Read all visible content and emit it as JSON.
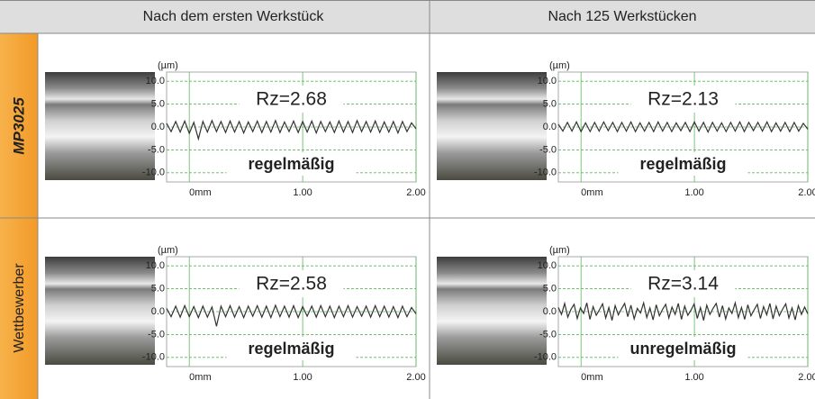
{
  "header": [
    "Nach dem ersten Werkstück",
    "Nach 125 Werkstücken"
  ],
  "rows": [
    {
      "label": "MP3025",
      "cells": [
        {
          "type": "line",
          "unit": "(µm)",
          "rz": "Rz=2.68",
          "rating": "regelmäßig",
          "ylim": [
            -12,
            12
          ],
          "yticks": [
            {
              "value": 10,
              "label": "10.0"
            },
            {
              "value": 5,
              "label": "5.0"
            },
            {
              "value": 0,
              "label": "0.0"
            },
            {
              "value": -5,
              "label": "-5.0"
            },
            {
              "value": -10,
              "label": "-10.0"
            }
          ],
          "xlim": [
            -0.2,
            2.0
          ],
          "xticks": [
            {
              "value": 0,
              "label": "0mm"
            },
            {
              "value": 1,
              "label": "1.00"
            },
            {
              "value": 2,
              "label": "2.00"
            }
          ],
          "profile": [
            0.8,
            -1.0,
            1.2,
            -1.1,
            1.3,
            -1.4,
            1.0,
            -2.6,
            1.2,
            -1.1,
            1.4,
            -1.0,
            1.2,
            -1.2,
            1.3,
            -1.1,
            1.2,
            -1.3,
            1.1,
            -1.0,
            1.3,
            -1.2,
            1.2,
            -1.1,
            1.4,
            -1.2,
            1.1,
            -1.0,
            1.3,
            -1.2,
            1.2,
            -1.1,
            1.3,
            -1.3,
            1.2,
            -1.0,
            1.1,
            -1.2,
            1.3,
            -1.1,
            1.2,
            -1.2,
            1.4,
            -1.0,
            1.2,
            -1.1,
            1.3,
            -1.2,
            1.1,
            -1.1,
            1.2,
            -1.3,
            1.2,
            -1.0,
            0.9,
            -0.4
          ]
        },
        {
          "type": "line",
          "unit": "(µm)",
          "rz": "Rz=2.13",
          "rating": "regelmäßig",
          "ylim": [
            -12,
            12
          ],
          "yticks": [
            {
              "value": 10,
              "label": "10.0"
            },
            {
              "value": 5,
              "label": "5.0"
            },
            {
              "value": 0,
              "label": "0.0"
            },
            {
              "value": -5,
              "label": "-5.0"
            },
            {
              "value": -10,
              "label": "-10.0"
            }
          ],
          "xlim": [
            -0.2,
            2.0
          ],
          "xticks": [
            {
              "value": 0,
              "label": "0mm"
            },
            {
              "value": 1,
              "label": "1.00"
            },
            {
              "value": 2,
              "label": "2.00"
            }
          ],
          "profile": [
            0.6,
            -0.9,
            1.0,
            -0.9,
            1.1,
            -1.0,
            0.9,
            -1.0,
            1.0,
            -0.9,
            1.1,
            -0.8,
            1.0,
            -1.0,
            1.0,
            -0.9,
            1.1,
            -1.0,
            0.9,
            -0.9,
            1.0,
            -1.0,
            1.1,
            -0.9,
            1.0,
            -1.0,
            0.9,
            -0.8,
            1.0,
            -1.0,
            1.1,
            -0.9,
            1.0,
            -1.1,
            1.0,
            -0.9,
            0.9,
            -1.0,
            1.0,
            -0.9,
            1.1,
            -1.0,
            1.0,
            -0.8,
            1.0,
            -0.9,
            1.1,
            -1.0,
            0.9,
            -0.9,
            1.0,
            -1.0,
            1.0,
            -0.9,
            0.8,
            -0.5
          ]
        }
      ]
    },
    {
      "label": "Wettbewerber",
      "cells": [
        {
          "type": "line",
          "unit": "(µm)",
          "rz": "Rz=2.58",
          "rating": "regelmäßig",
          "ylim": [
            -12,
            12
          ],
          "yticks": [
            {
              "value": 10,
              "label": "10.0"
            },
            {
              "value": 5,
              "label": "5.0"
            },
            {
              "value": 0,
              "label": "0.0"
            },
            {
              "value": -5,
              "label": "-5.0"
            },
            {
              "value": -10,
              "label": "-10.0"
            }
          ],
          "xlim": [
            -0.2,
            2.0
          ],
          "xticks": [
            {
              "value": 0,
              "label": "0mm"
            },
            {
              "value": 1,
              "label": "1.00"
            },
            {
              "value": 2,
              "label": "2.00"
            }
          ],
          "profile": [
            0.7,
            -1.1,
            1.2,
            -1.2,
            1.3,
            -1.1,
            1.1,
            -1.3,
            1.2,
            -1.2,
            1.0,
            -3.2,
            1.2,
            -1.1,
            1.3,
            -1.2,
            1.1,
            -1.3,
            1.2,
            -1.0,
            1.3,
            -1.2,
            1.2,
            -1.3,
            1.4,
            -1.1,
            1.2,
            -1.2,
            1.3,
            -1.3,
            1.1,
            -1.0,
            1.2,
            -1.2,
            1.3,
            -1.1,
            1.2,
            -1.3,
            1.2,
            -1.1,
            1.3,
            -1.2,
            1.1,
            -1.0,
            1.2,
            -1.2,
            1.3,
            -1.1,
            1.2,
            -1.2,
            1.1,
            -1.3,
            1.2,
            -1.1,
            0.9,
            -0.5
          ]
        },
        {
          "type": "line",
          "unit": "(µm)",
          "rz": "Rz=3.14",
          "rating": "unregelmäßig",
          "ylim": [
            -12,
            12
          ],
          "yticks": [
            {
              "value": 10,
              "label": "10.0"
            },
            {
              "value": 5,
              "label": "5.0"
            },
            {
              "value": 0,
              "label": "0.0"
            },
            {
              "value": -5,
              "label": "-5.0"
            },
            {
              "value": -10,
              "label": "-10.0"
            }
          ],
          "xlim": [
            -0.2,
            2.0
          ],
          "xticks": [
            {
              "value": 0,
              "label": "0mm"
            },
            {
              "value": 1,
              "label": "1.00"
            },
            {
              "value": 2,
              "label": "2.00"
            }
          ],
          "profile": [
            0.9,
            -0.6,
            1.8,
            -1.2,
            0.5,
            1.6,
            -1.5,
            0.8,
            -0.4,
            1.9,
            -1.7,
            1.1,
            -0.8,
            0.4,
            1.7,
            -1.4,
            0.9,
            -1.9,
            1.3,
            -0.7,
            0.6,
            1.8,
            -1.1,
            1.4,
            -1.6,
            0.7,
            -0.3,
            1.9,
            -1.3,
            0.8,
            -1.8,
            1.5,
            -0.9,
            0.5,
            1.6,
            -1.4,
            1.0,
            -0.6,
            1.8,
            -1.7,
            1.2,
            -0.8,
            0.3,
            1.7,
            -1.5,
            0.9,
            -1.9,
            1.4,
            -0.6,
            0.7,
            1.8,
            -1.2,
            1.3,
            -1.6,
            0.8,
            -0.4,
            1.9,
            -1.3,
            0.9,
            -1.7,
            1.5,
            -0.9,
            0.4,
            1.6,
            -1.5,
            1.1,
            -0.7,
            1.8,
            -1.6,
            1.2,
            -0.9,
            0.5,
            1.7,
            -1.4,
            0.8,
            -1.8,
            1.3,
            -0.6,
            1.0,
            -0.5
          ]
        }
      ]
    }
  ]
}
